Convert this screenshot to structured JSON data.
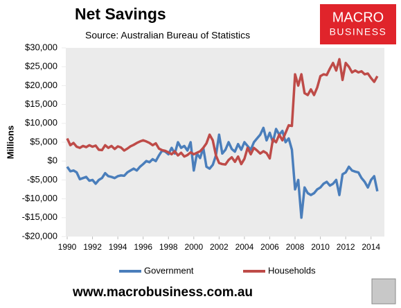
{
  "chart_data": {
    "type": "line",
    "title": "Net Savings",
    "subtitle": "Source: Australian Bureau of Statistics",
    "y_label": "Millions",
    "logo": {
      "line1": "MACRO",
      "line2": "BUSINESS"
    },
    "footer": "www.macrobusiness.com.au",
    "x": [
      1990,
      1990.25,
      1990.5,
      1990.75,
      1991,
      1991.25,
      1991.5,
      1991.75,
      1992,
      1992.25,
      1992.5,
      1992.75,
      1993,
      1993.25,
      1993.5,
      1993.75,
      1994,
      1994.25,
      1994.5,
      1994.75,
      1995,
      1995.25,
      1995.5,
      1995.75,
      1996,
      1996.25,
      1996.5,
      1996.75,
      1997,
      1997.25,
      1997.5,
      1997.75,
      1998,
      1998.25,
      1998.5,
      1998.75,
      1999,
      1999.25,
      1999.5,
      1999.75,
      2000,
      2000.25,
      2000.5,
      2000.75,
      2001,
      2001.25,
      2001.5,
      2001.75,
      2002,
      2002.25,
      2002.5,
      2002.75,
      2003,
      2003.25,
      2003.5,
      2003.75,
      2004,
      2004.25,
      2004.5,
      2004.75,
      2005,
      2005.25,
      2005.5,
      2005.75,
      2006,
      2006.25,
      2006.5,
      2006.75,
      2007,
      2007.25,
      2007.5,
      2007.75,
      2008,
      2008.25,
      2008.5,
      2008.75,
      2009,
      2009.25,
      2009.5,
      2009.75,
      2010,
      2010.25,
      2010.5,
      2010.75,
      2011,
      2011.25,
      2011.5,
      2011.75,
      2012,
      2012.25,
      2012.5,
      2012.75,
      2013,
      2013.25,
      2013.5,
      2013.75,
      2014,
      2014.25,
      2014.5
    ],
    "series": [
      {
        "name": "Government",
        "color": "#4a7ebb",
        "values": [
          -1500,
          -2700,
          -2500,
          -3000,
          -4800,
          -4500,
          -4200,
          -5200,
          -5000,
          -6000,
          -5000,
          -4500,
          -3200,
          -4000,
          -4200,
          -4500,
          -4000,
          -3800,
          -3900,
          -3000,
          -2500,
          -2000,
          -2500,
          -1500,
          -800,
          0,
          -300,
          500,
          0,
          1500,
          2800,
          2500,
          1800,
          3500,
          2000,
          5000,
          3500,
          4000,
          2800,
          5000,
          -2500,
          2000,
          800,
          3500,
          -1500,
          -2000,
          -1000,
          1500,
          7000,
          2000,
          3000,
          5000,
          3200,
          2500,
          4500,
          3000,
          5000,
          4000,
          3000,
          5000,
          6000,
          7000,
          8800,
          5500,
          7500,
          5000,
          8500,
          7000,
          8000,
          5000,
          6000,
          3000,
          -7500,
          -5000,
          -15000,
          -7000,
          -8500,
          -9000,
          -8500,
          -7500,
          -7000,
          -6000,
          -5500,
          -6500,
          -6000,
          -5000,
          -9000,
          -3500,
          -3000,
          -1500,
          -2500,
          -2800,
          -3000,
          -4500,
          -5500,
          -7000,
          -5000,
          -4000,
          -8000
        ]
      },
      {
        "name": "Households",
        "color": "#be4b48",
        "values": [
          6000,
          4200,
          4800,
          3800,
          3500,
          4000,
          3700,
          4200,
          3800,
          4100,
          3000,
          2900,
          4200,
          3500,
          4000,
          3200,
          3900,
          3600,
          2800,
          3300,
          3900,
          4300,
          4800,
          5200,
          5500,
          5200,
          4800,
          4200,
          4700,
          3300,
          2900,
          2700,
          2300,
          1800,
          2600,
          1500,
          2200,
          1200,
          1600,
          2300,
          1800,
          2200,
          2600,
          3500,
          4700,
          7000,
          5500,
          1500,
          -500,
          -800,
          -900,
          300,
          1000,
          -200,
          1200,
          -800,
          600,
          3500,
          1800,
          3500,
          2800,
          2000,
          2600,
          2100,
          700,
          5800,
          5000,
          7000,
          5500,
          7500,
          9500,
          9300,
          23000,
          20000,
          23000,
          18000,
          17500,
          19000,
          17500,
          19500,
          22500,
          23000,
          22800,
          24500,
          26000,
          24000,
          27000,
          21500,
          26000,
          25000,
          23500,
          24000,
          23500,
          23800,
          23000,
          23200,
          22000,
          21000,
          22500
        ]
      }
    ],
    "xlim": [
      1990,
      2015
    ],
    "xticks": [
      1990,
      1992,
      1994,
      1996,
      1998,
      2000,
      2002,
      2004,
      2006,
      2008,
      2010,
      2012,
      2014
    ],
    "ylim": [
      -20000,
      30000
    ],
    "yticks": [
      {
        "value": -20000,
        "label": "-$20,000"
      },
      {
        "value": -15000,
        "label": "-$15,000"
      },
      {
        "value": -10000,
        "label": "-$10,000"
      },
      {
        "value": -5000,
        "label": "-$5,000"
      },
      {
        "value": 0,
        "label": "$0"
      },
      {
        "value": 5000,
        "label": "$5,000"
      },
      {
        "value": 10000,
        "label": "$10,000"
      },
      {
        "value": 15000,
        "label": "$15,000"
      },
      {
        "value": 20000,
        "label": "$20,000"
      },
      {
        "value": 25000,
        "label": "$25,000"
      },
      {
        "value": 30000,
        "label": "$30,000"
      }
    ],
    "legend": "bottom"
  }
}
